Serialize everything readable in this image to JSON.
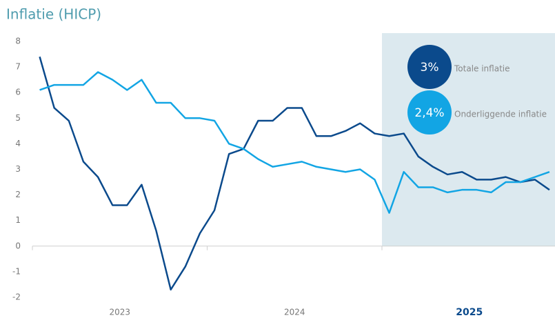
{
  "chart_data": {
    "type": "line",
    "title": "Inflatie (HICP)",
    "x_labels": [
      "2023",
      "2024",
      "2025"
    ],
    "shade_from": "2025",
    "ylim": [
      -2,
      8
    ],
    "yticks": [
      8,
      7,
      6,
      5,
      4,
      3,
      2,
      1,
      0,
      -1,
      -2
    ],
    "series": [
      {
        "name": "Totale inflatie",
        "color": "#0b4a8c",
        "bubble_value": 3,
        "bubble_label": "3%",
        "values": [
          7.4,
          5.4,
          4.9,
          3.3,
          2.7,
          1.6,
          1.6,
          2.4,
          0.6,
          -1.7,
          -0.8,
          0.5,
          1.4,
          3.6,
          3.8,
          4.9,
          4.9,
          5.4,
          5.4,
          4.3,
          4.3,
          4.5,
          4.8,
          4.4,
          4.3,
          4.4,
          3.5,
          3.1,
          2.8,
          2.9,
          2.6,
          2.6,
          2.7,
          2.5,
          2.6,
          2.2
        ]
      },
      {
        "name": "Onderliggende inflatie",
        "color": "#12a5e4",
        "bubble_value": 2.4,
        "bubble_label": "2,4%",
        "values": [
          6.1,
          6.3,
          6.3,
          6.3,
          6.8,
          6.5,
          6.1,
          6.5,
          5.6,
          5.6,
          5.0,
          5.0,
          4.9,
          4.0,
          3.8,
          3.4,
          3.1,
          3.2,
          3.3,
          3.1,
          3.0,
          2.9,
          3.0,
          2.6,
          1.3,
          2.9,
          2.3,
          2.3,
          2.1,
          2.2,
          2.2,
          2.1,
          2.5,
          2.5,
          2.7,
          2.9
        ]
      }
    ]
  }
}
